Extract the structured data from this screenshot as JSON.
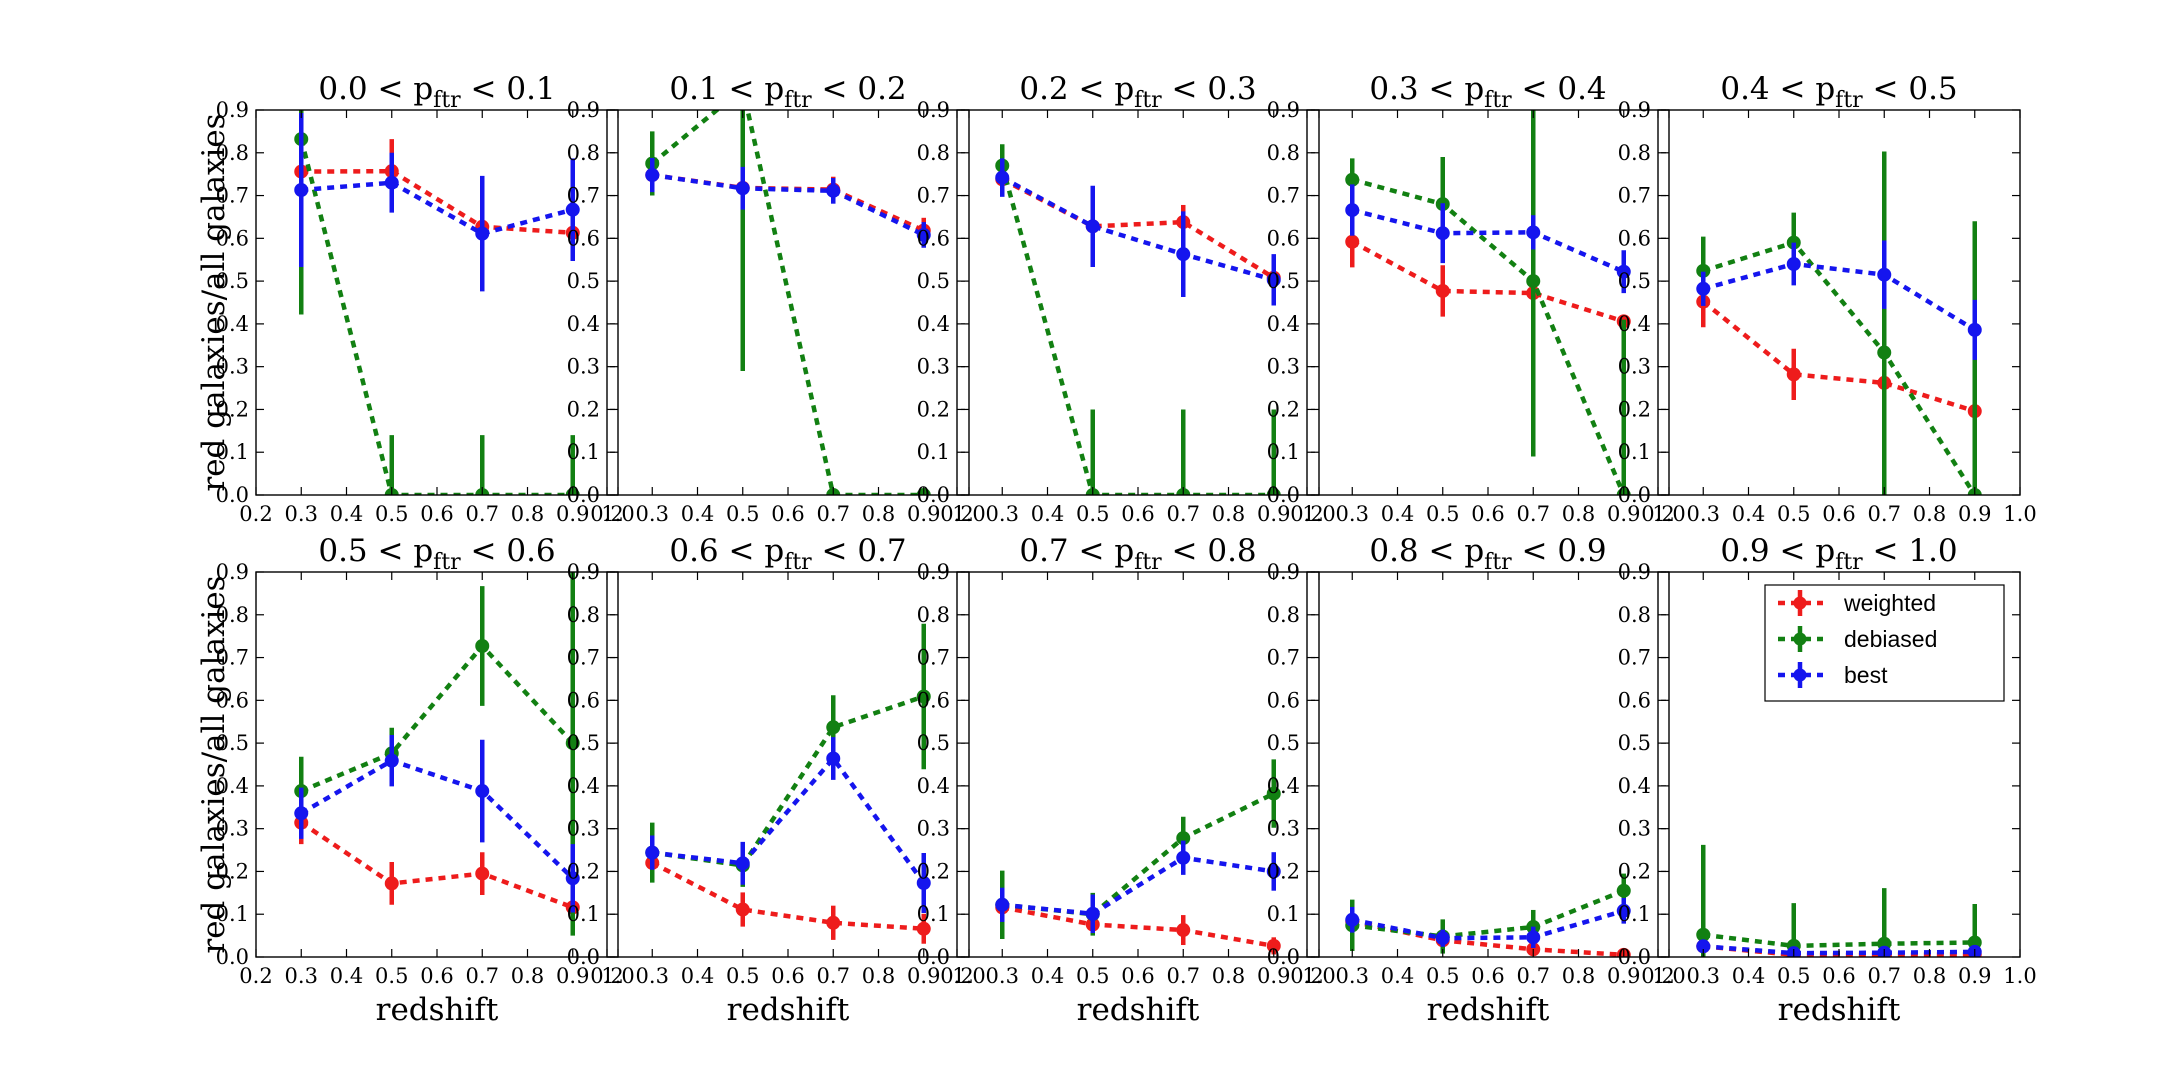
{
  "chart_data": {
    "type": "line",
    "ylabel": "red galaxies/all galaxies",
    "xlabel": "redshift",
    "xlim": [
      0.2,
      1.0
    ],
    "ylim": [
      0.0,
      0.9
    ],
    "xticks": [
      "0.2",
      "0.3",
      "0.4",
      "0.5",
      "0.6",
      "0.7",
      "0.8",
      "0.9",
      "1.0"
    ],
    "yticks": [
      "0.0",
      "0.1",
      "0.2",
      "0.3",
      "0.4",
      "0.5",
      "0.6",
      "0.7",
      "0.8",
      "0.9"
    ],
    "x": [
      0.3,
      0.5,
      0.7,
      0.9
    ],
    "grid": false,
    "legend": {
      "panel_index": 9,
      "placement": "top-right",
      "entries": [
        "weighted",
        "debiased",
        "best"
      ]
    },
    "series_styles": {
      "weighted": {
        "color": "#ee1c1c"
      },
      "debiased": {
        "color": "#128012"
      },
      "best": {
        "color": "#1515ee"
      }
    },
    "panels": [
      {
        "title_prefix": "0.0 < p",
        "title_sub": "ftr",
        "title_suffix": " < 0.1",
        "series": [
          {
            "name": "weighted",
            "values": [
              0.756,
              0.757,
              0.627,
              0.613
            ],
            "err": [
              0.0,
              0.075,
              0.0,
              0.0
            ]
          },
          {
            "name": "debiased",
            "values": [
              0.832,
              0.0,
              0.0,
              0.0
            ],
            "err": [
              0.41,
              0.14,
              0.14,
              0.14
            ]
          },
          {
            "name": "best",
            "values": [
              0.713,
              0.73,
              0.611,
              0.667
            ],
            "err": [
              0.18,
              0.07,
              0.135,
              0.12
            ]
          }
        ]
      },
      {
        "title_prefix": "0.1 < p",
        "title_sub": "ftr",
        "title_suffix": " < 0.2",
        "series": [
          {
            "name": "weighted",
            "values": [
              0.748,
              0.718,
              0.714,
              0.618
            ],
            "err": [
              0.0,
              0.0,
              0.03,
              0.03
            ]
          },
          {
            "name": "debiased",
            "values": [
              0.775,
              0.95,
              0.0,
              0.0
            ],
            "err": [
              0.075,
              0.66,
              0.0,
              0.0
            ]
          },
          {
            "name": "best",
            "values": [
              0.748,
              0.717,
              0.711,
              0.608
            ],
            "err": [
              0.04,
              0.05,
              0.03,
              0.03
            ]
          }
        ]
      },
      {
        "title_prefix": "0.2 < p",
        "title_sub": "ftr",
        "title_suffix": " < 0.3",
        "series": [
          {
            "name": "weighted",
            "values": [
              0.738,
              0.628,
              0.638,
              0.508
            ],
            "err": [
              0.0,
              0.0,
              0.04,
              0.04
            ]
          },
          {
            "name": "debiased",
            "values": [
              0.77,
              0.0,
              0.0,
              0.0
            ],
            "err": [
              0.05,
              0.2,
              0.2,
              0.2
            ]
          },
          {
            "name": "best",
            "values": [
              0.742,
              0.628,
              0.563,
              0.503
            ],
            "err": [
              0.045,
              0.095,
              0.1,
              0.06
            ]
          }
        ]
      },
      {
        "title_prefix": "0.3 < p",
        "title_sub": "ftr",
        "title_suffix": " < 0.4",
        "series": [
          {
            "name": "weighted",
            "values": [
              0.592,
              0.477,
              0.472,
              0.406
            ],
            "err": [
              0.06,
              0.06,
              0.0,
              0.0
            ]
          },
          {
            "name": "debiased",
            "values": [
              0.737,
              0.68,
              0.5,
              0.0
            ],
            "err": [
              0.05,
              0.11,
              0.41,
              0.41
            ]
          },
          {
            "name": "best",
            "values": [
              0.666,
              0.612,
              0.614,
              0.522
            ],
            "err": [
              0.06,
              0.07,
              0.04,
              0.05
            ]
          }
        ]
      },
      {
        "title_prefix": "0.4 < p",
        "title_sub": "ftr",
        "title_suffix": " < 0.5",
        "series": [
          {
            "name": "weighted",
            "values": [
              0.452,
              0.282,
              0.262,
              0.196
            ],
            "err": [
              0.06,
              0.06,
              0.0,
              0.0
            ]
          },
          {
            "name": "debiased",
            "values": [
              0.524,
              0.59,
              0.333,
              0.0
            ],
            "err": [
              0.08,
              0.07,
              0.47,
              0.64
            ]
          },
          {
            "name": "best",
            "values": [
              0.482,
              0.54,
              0.515,
              0.386
            ],
            "err": [
              0.04,
              0.05,
              0.08,
              0.07
            ]
          }
        ]
      },
      {
        "title_prefix": "0.5 < p",
        "title_sub": "ftr",
        "title_suffix": " < 0.6",
        "series": [
          {
            "name": "weighted",
            "values": [
              0.314,
              0.172,
              0.195,
              0.116
            ],
            "err": [
              0.05,
              0.05,
              0.05,
              0.04
            ]
          },
          {
            "name": "debiased",
            "values": [
              0.388,
              0.476,
              0.727,
              0.5
            ],
            "err": [
              0.08,
              0.06,
              0.14,
              0.45
            ]
          },
          {
            "name": "best",
            "values": [
              0.336,
              0.459,
              0.388,
              0.184
            ],
            "err": [
              0.06,
              0.06,
              0.12,
              0.08
            ]
          }
        ]
      },
      {
        "title_prefix": "0.6 < p",
        "title_sub": "ftr",
        "title_suffix": " < 0.7",
        "series": [
          {
            "name": "weighted",
            "values": [
              0.22,
              0.111,
              0.08,
              0.066
            ],
            "err": [
              0.04,
              0.04,
              0.04,
              0.035
            ]
          },
          {
            "name": "debiased",
            "values": [
              0.244,
              0.214,
              0.537,
              0.609
            ],
            "err": [
              0.07,
              0.05,
              0.075,
              0.17
            ]
          },
          {
            "name": "best",
            "values": [
              0.244,
              0.219,
              0.464,
              0.173
            ],
            "err": [
              0.04,
              0.05,
              0.05,
              0.07
            ]
          }
        ]
      },
      {
        "title_prefix": "0.7 < p",
        "title_sub": "ftr",
        "title_suffix": " < 0.8",
        "series": [
          {
            "name": "weighted",
            "values": [
              0.116,
              0.076,
              0.063,
              0.026
            ],
            "err": [
              0.03,
              0.025,
              0.035,
              0.02
            ]
          },
          {
            "name": "debiased",
            "values": [
              0.122,
              0.1,
              0.278,
              0.382
            ],
            "err": [
              0.08,
              0.05,
              0.05,
              0.08
            ]
          },
          {
            "name": "best",
            "values": [
              0.122,
              0.101,
              0.232,
              0.2
            ],
            "err": [
              0.04,
              0.045,
              0.04,
              0.045
            ]
          }
        ]
      },
      {
        "title_prefix": "0.8 < p",
        "title_sub": "ftr",
        "title_suffix": " < 0.9",
        "series": [
          {
            "name": "weighted",
            "values": [
              0.083,
              0.039,
              0.018,
              0.005
            ],
            "err": [
              0.02,
              0.015,
              0.015,
              0.015
            ]
          },
          {
            "name": "debiased",
            "values": [
              0.074,
              0.048,
              0.07,
              0.155
            ],
            "err": [
              0.06,
              0.04,
              0.04,
              0.04
            ]
          },
          {
            "name": "best",
            "values": [
              0.087,
              0.044,
              0.046,
              0.108
            ],
            "err": [
              0.03,
              0.02,
              0.025,
              0.03
            ]
          }
        ]
      },
      {
        "title_prefix": "0.9 < p",
        "title_sub": "ftr",
        "title_suffix": " < 1.0",
        "series": [
          {
            "name": "weighted",
            "values": [
              0.025,
              0.005,
              0.005,
              0.006
            ],
            "err": [
              0.01,
              0.005,
              0.005,
              0.005
            ]
          },
          {
            "name": "debiased",
            "values": [
              0.052,
              0.026,
              0.031,
              0.034
            ],
            "err": [
              0.21,
              0.1,
              0.13,
              0.09
            ]
          },
          {
            "name": "best",
            "values": [
              0.025,
              0.009,
              0.01,
              0.012
            ],
            "err": [
              0.01,
              0.01,
              0.01,
              0.01
            ]
          }
        ]
      }
    ]
  }
}
